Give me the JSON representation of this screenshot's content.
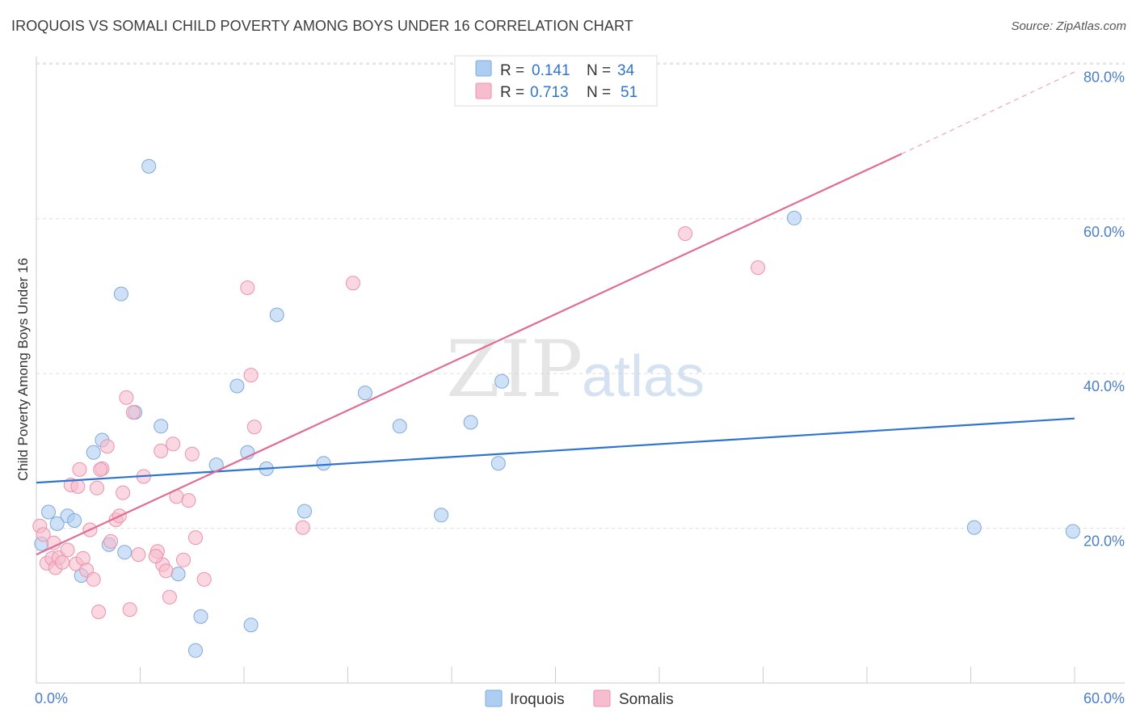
{
  "title": "IROQUOIS VS SOMALI CHILD POVERTY AMONG BOYS UNDER 16 CORRELATION CHART",
  "source": "Source: ZipAtlas.com",
  "watermark": {
    "zip": "ZIP",
    "atlas": "atlas"
  },
  "colors": {
    "iroquois_fill": "#aecdf2",
    "iroquois_stroke": "#7fa9dc",
    "iroquois_line": "#2f74cf",
    "somalis_fill": "#f7bccd",
    "somalis_stroke": "#ea93ad",
    "somalis_line": "#e06d93",
    "tick_text": "#4a7ec8",
    "grid": "#dddddd"
  },
  "legend": {
    "rows": [
      {
        "r_label": "R = ",
        "r_value": "0.141",
        "n_label": "N = ",
        "n_value": "34"
      },
      {
        "r_label": "R = ",
        "r_value": "0.713",
        "n_label": "N = ",
        "n_value": "51"
      }
    ]
  },
  "bottom_legend": [
    "Iroquois",
    "Somalis"
  ],
  "chart_data": {
    "type": "scatter",
    "title": "IROQUOIS VS SOMALI CHILD POVERTY AMONG BOYS UNDER 16 CORRELATION CHART",
    "xlabel": "",
    "ylabel": "Child Poverty Among Boys Under 16",
    "xlim": [
      0,
      60
    ],
    "ylim": [
      0,
      82
    ],
    "x_tick_labels": [
      "0.0%",
      "60.0%"
    ],
    "y_ticks": [
      20,
      40,
      60,
      80
    ],
    "y_tick_labels": [
      "20.0%",
      "40.0%",
      "60.0%",
      "80.0%"
    ],
    "grid": true,
    "series": [
      {
        "name": "Iroquois",
        "r": 0.141,
        "n": 34,
        "points": [
          [
            0.3,
            18.0
          ],
          [
            0.7,
            22.1
          ],
          [
            1.2,
            20.6
          ],
          [
            1.8,
            21.6
          ],
          [
            2.2,
            21.0
          ],
          [
            2.6,
            13.9
          ],
          [
            3.3,
            29.8
          ],
          [
            3.8,
            31.4
          ],
          [
            4.2,
            17.9
          ],
          [
            5.1,
            16.9
          ],
          [
            5.7,
            35.0
          ],
          [
            6.5,
            66.8
          ],
          [
            7.2,
            33.2
          ],
          [
            8.2,
            14.1
          ],
          [
            9.5,
            8.6
          ],
          [
            10.4,
            28.2
          ],
          [
            11.6,
            38.4
          ],
          [
            12.2,
            29.8
          ],
          [
            12.4,
            7.5
          ],
          [
            13.3,
            27.7
          ],
          [
            13.9,
            47.6
          ],
          [
            15.5,
            22.2
          ],
          [
            16.6,
            28.4
          ],
          [
            19.0,
            37.5
          ],
          [
            21.0,
            33.2
          ],
          [
            23.4,
            21.7
          ],
          [
            25.1,
            33.7
          ],
          [
            26.7,
            28.4
          ],
          [
            26.9,
            39.0
          ],
          [
            43.8,
            60.1
          ],
          [
            54.2,
            20.1
          ],
          [
            59.9,
            19.6
          ],
          [
            9.2,
            4.2
          ],
          [
            4.9,
            50.3
          ]
        ],
        "trend": {
          "x0": 0,
          "y0": 25.9,
          "x1": 60,
          "y1": 34.2
        }
      },
      {
        "name": "Somalis",
        "r": 0.713,
        "n": 51,
        "points": [
          [
            0.2,
            20.3
          ],
          [
            0.4,
            19.2
          ],
          [
            0.6,
            15.5
          ],
          [
            0.9,
            16.1
          ],
          [
            1.1,
            14.9
          ],
          [
            1.3,
            16.2
          ],
          [
            1.5,
            15.6
          ],
          [
            1.8,
            17.2
          ],
          [
            2.0,
            25.6
          ],
          [
            2.3,
            15.4
          ],
          [
            2.5,
            27.6
          ],
          [
            2.7,
            16.1
          ],
          [
            2.9,
            14.6
          ],
          [
            3.1,
            19.8
          ],
          [
            3.3,
            13.4
          ],
          [
            3.5,
            25.2
          ],
          [
            3.6,
            9.2
          ],
          [
            3.8,
            27.7
          ],
          [
            4.1,
            30.6
          ],
          [
            4.3,
            18.3
          ],
          [
            4.6,
            21.1
          ],
          [
            4.8,
            21.6
          ],
          [
            5.0,
            24.6
          ],
          [
            5.2,
            36.9
          ],
          [
            5.4,
            9.5
          ],
          [
            5.6,
            35.0
          ],
          [
            5.9,
            16.6
          ],
          [
            6.2,
            26.7
          ],
          [
            7.0,
            17.0
          ],
          [
            7.2,
            30.0
          ],
          [
            7.3,
            15.3
          ],
          [
            7.5,
            14.5
          ],
          [
            7.7,
            11.1
          ],
          [
            7.9,
            30.9
          ],
          [
            8.1,
            24.1
          ],
          [
            8.5,
            15.9
          ],
          [
            8.8,
            23.6
          ],
          [
            9.0,
            29.6
          ],
          [
            9.2,
            18.8
          ],
          [
            9.7,
            13.4
          ],
          [
            12.2,
            51.1
          ],
          [
            12.4,
            39.8
          ],
          [
            12.6,
            33.1
          ],
          [
            15.4,
            20.1
          ],
          [
            18.3,
            51.7
          ],
          [
            37.5,
            58.1
          ],
          [
            41.7,
            53.7
          ],
          [
            2.4,
            25.4
          ],
          [
            1.0,
            18.1
          ],
          [
            3.7,
            27.6
          ],
          [
            6.9,
            16.4
          ]
        ],
        "trend": {
          "x0": 0,
          "y0": 16.6,
          "x1": 50,
          "y1": 68.4
        },
        "trend_extension": {
          "x0": 50,
          "y0": 68.4,
          "x1": 60,
          "y1": 79.0
        }
      }
    ]
  }
}
